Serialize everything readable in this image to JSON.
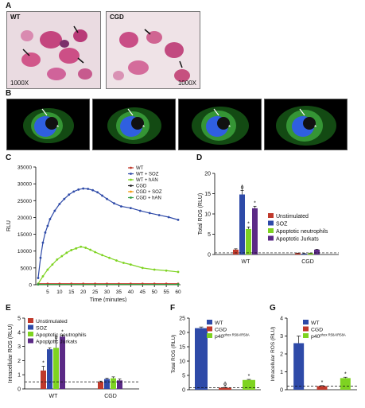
{
  "panels": {
    "a": "A",
    "b": "B",
    "c": "C",
    "d": "D",
    "e": "E",
    "f": "F",
    "g": "G"
  },
  "panel_a": {
    "left_label": "WT",
    "right_label": "CGD",
    "left_mag": "1000X",
    "right_mag": "1000X"
  },
  "colors": {
    "wt": "#c0392b",
    "soz": "#2e4aa8",
    "wt_han": "#7ed321",
    "cgd": "#1f1f1f",
    "cgd_soz": "#f39c12",
    "cgd_han": "#2f9e41",
    "unstim": "#c0392b",
    "apop_neut": "#7ed321",
    "apop_jurk": "#5b2a86"
  },
  "chart_data": [
    {
      "id": "C",
      "type": "line",
      "xlabel": "Time (minutes)",
      "ylabel": "RLU",
      "xlim": [
        0,
        61
      ],
      "ylim": [
        0,
        35000
      ],
      "xticks": [
        5,
        10,
        15,
        20,
        25,
        30,
        35,
        40,
        45,
        50,
        55,
        60
      ],
      "yticks": [
        0,
        5000,
        10000,
        15000,
        20000,
        25000,
        30000,
        35000
      ],
      "legend_position": "top-right",
      "series": [
        {
          "name": "WT",
          "color": "#c0392b",
          "x": [
            1,
            5,
            10,
            15,
            20,
            25,
            30,
            35,
            40,
            45,
            50,
            55,
            60
          ],
          "y": [
            300,
            300,
            300,
            300,
            300,
            300,
            300,
            300,
            300,
            300,
            300,
            300,
            300
          ]
        },
        {
          "name": "WT + SOZ",
          "color": "#2e4aa8",
          "x": [
            1,
            2,
            3,
            4,
            5,
            6,
            8,
            10,
            12,
            14,
            16,
            18,
            20,
            22,
            24,
            26,
            28,
            30,
            33,
            36,
            40,
            44,
            48,
            52,
            56,
            60
          ],
          "y": [
            2000,
            8000,
            12500,
            15500,
            17500,
            19500,
            22000,
            24000,
            25500,
            26800,
            27700,
            28300,
            28600,
            28500,
            28100,
            27500,
            26500,
            25500,
            24200,
            23300,
            22800,
            22000,
            21300,
            20700,
            20100,
            19300
          ]
        },
        {
          "name": "WT + hAN",
          "color": "#7ed321",
          "x": [
            1,
            3,
            5,
            7,
            9,
            11,
            13,
            15,
            17,
            19,
            21,
            23,
            25,
            28,
            31,
            34,
            37,
            40,
            45,
            50,
            55,
            60
          ],
          "y": [
            300,
            2500,
            4500,
            6000,
            7500,
            8500,
            9500,
            10300,
            10800,
            11300,
            11000,
            10400,
            9700,
            8800,
            8000,
            7200,
            6500,
            6000,
            5000,
            4500,
            4200,
            3800
          ]
        },
        {
          "name": "CGD",
          "color": "#1f1f1f",
          "x": [
            1,
            60
          ],
          "y": [
            100,
            100
          ]
        },
        {
          "name": "CGD + SOZ",
          "color": "#f39c12",
          "x": [
            1,
            60
          ],
          "y": [
            100,
            100
          ]
        },
        {
          "name": "CGD + hAN",
          "color": "#2f9e41",
          "x": [
            1,
            60
          ],
          "y": [
            100,
            100
          ]
        }
      ]
    },
    {
      "id": "D",
      "type": "bar",
      "ylabel": "Total ROS (RLU)",
      "ylim": [
        0,
        20
      ],
      "yticks": [
        0,
        5,
        10,
        15,
        20
      ],
      "groups": [
        "WT",
        "CGD"
      ],
      "legend_position": "top-right",
      "series": [
        {
          "name": "Unstimulated",
          "color": "#c0392b",
          "values": [
            1.2,
            0.3
          ],
          "errors": [
            0.2,
            0.05
          ],
          "marks": [
            "",
            ""
          ]
        },
        {
          "name": "SOZ",
          "color": "#2e4aa8",
          "values": [
            14.8,
            0.2
          ],
          "errors": [
            1.0,
            0.05
          ],
          "marks": [
            "ɸ",
            ""
          ]
        },
        {
          "name": "Apoptotic neutrophils",
          "color": "#7ed321",
          "values": [
            6.3,
            0.3
          ],
          "errors": [
            0.5,
            0.05
          ],
          "marks": [
            "*",
            ""
          ]
        },
        {
          "name": "Apoptotic Jurkats",
          "color": "#5b2a86",
          "values": [
            11.4,
            1.2
          ],
          "errors": [
            0.5,
            0.1
          ],
          "marks": [
            "*",
            ""
          ]
        }
      ],
      "baseline": 0.4
    },
    {
      "id": "E",
      "type": "bar",
      "ylabel": "Intracellular ROS (RLU)",
      "ylim": [
        0,
        5
      ],
      "yticks": [
        0,
        1,
        2,
        3,
        4,
        5
      ],
      "groups": [
        "WT",
        "CGD"
      ],
      "legend_position": "top-left",
      "series": [
        {
          "name": "Unstimulated",
          "color": "#c0392b",
          "values": [
            1.3,
            0.5
          ],
          "errors": [
            0.3,
            0.05
          ],
          "marks": [
            "*",
            ""
          ]
        },
        {
          "name": "SOZ",
          "color": "#2e4aa8",
          "values": [
            2.8,
            0.7
          ],
          "errors": [
            0.1,
            0.05
          ],
          "marks": [
            "*",
            ""
          ]
        },
        {
          "name": "Apoptotic neutrophils",
          "color": "#7ed321",
          "values": [
            2.9,
            0.75
          ],
          "errors": [
            0.5,
            0.1
          ],
          "marks": [
            "ɸ",
            ""
          ]
        },
        {
          "name": "Apoptotic Jurkats",
          "color": "#5b2a86",
          "values": [
            3.7,
            0.6
          ],
          "errors": [
            0.1,
            0.1
          ],
          "marks": [
            "*",
            ""
          ]
        }
      ],
      "baseline": 0.5
    },
    {
      "id": "F",
      "type": "bar",
      "ylabel": "Total ROS (RLU)",
      "ylim": [
        0,
        25
      ],
      "yticks": [
        0,
        5,
        10,
        15,
        20,
        25
      ],
      "categories": [
        "WT",
        "CGD",
        "p40phox R58A/R58A"
      ],
      "legend_labels": [
        {
          "main": "WT",
          "sup": ""
        },
        {
          "main": "CGD",
          "sup": ""
        },
        {
          "main": "p40",
          "sup": "phox R58A/R58A"
        }
      ],
      "values": [
        21.5,
        0.7,
        3.4
      ],
      "errors": [
        0.4,
        0.1,
        0.2
      ],
      "colors": [
        "#2e4aa8",
        "#c0392b",
        "#7ed321"
      ],
      "marks": [
        "",
        "ɸ",
        "*"
      ],
      "baseline": 0.7
    },
    {
      "id": "G",
      "type": "bar",
      "ylabel": "Intracellular ROS (RLU)",
      "ylim": [
        0,
        4
      ],
      "yticks": [
        0,
        1,
        2,
        3,
        4
      ],
      "categories": [
        "WT",
        "CGD",
        "p40phox R58A/R58A"
      ],
      "legend_labels": [
        {
          "main": "WT",
          "sup": ""
        },
        {
          "main": "CGD",
          "sup": ""
        },
        {
          "main": "p40",
          "sup": "phox R58A/R58A"
        }
      ],
      "values": [
        2.6,
        0.2,
        0.65
      ],
      "errors": [
        0.4,
        0.03,
        0.05
      ],
      "colors": [
        "#2e4aa8",
        "#c0392b",
        "#7ed321"
      ],
      "marks": [
        "",
        "*",
        "*"
      ],
      "baseline": 0.2
    }
  ]
}
